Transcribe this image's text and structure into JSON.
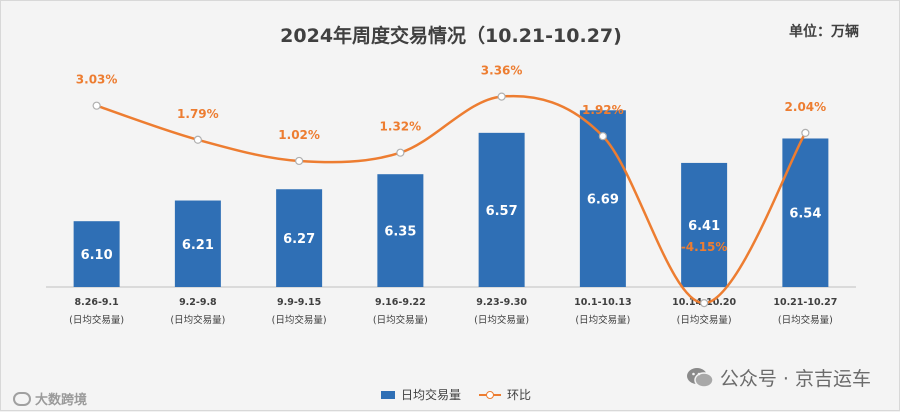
{
  "title": "2024年周度交易情况（10.21-10.27)",
  "unit": "单位：万辆",
  "colors": {
    "bar": "#2f6fb5",
    "line": "#ed7d31",
    "barLabel": "#ffffff",
    "lineLabel": "#ed7d31"
  },
  "chart_data": {
    "type": "bar",
    "title": "2024年周度交易情况（10.21-10.27)",
    "categories": [
      "8.26-9.1",
      "9.2-9.8",
      "9.9-9.15",
      "9.16-9.22",
      "9.23-9.30",
      "10.1-10.13",
      "10.14-10.20",
      "10.21-10.27"
    ],
    "category_sub": "(日均交易量)",
    "series": [
      {
        "name": "日均交易量",
        "type": "bar",
        "values": [
          6.1,
          6.21,
          6.27,
          6.35,
          6.57,
          6.69,
          6.41,
          6.54
        ],
        "labels": [
          "6.10",
          "6.21",
          "6.27",
          "6.35",
          "6.57",
          "6.69",
          "6.41",
          "6.54"
        ]
      },
      {
        "name": "环比",
        "type": "line",
        "smooth": true,
        "values": [
          3.03,
          1.79,
          1.02,
          1.32,
          3.36,
          1.92,
          -4.15,
          2.04
        ],
        "labels": [
          "3.03%",
          "1.79%",
          "1.02%",
          "1.32%",
          "3.36%",
          "1.92%",
          "-4.15%",
          "2.04%"
        ]
      }
    ],
    "legend_position": "bottom",
    "grid": false
  },
  "legend": {
    "bar": "日均交易量",
    "line": "环比"
  },
  "watermark": {
    "right_text": "公众号 · 京吉运车",
    "left_text": "大数跨境"
  }
}
